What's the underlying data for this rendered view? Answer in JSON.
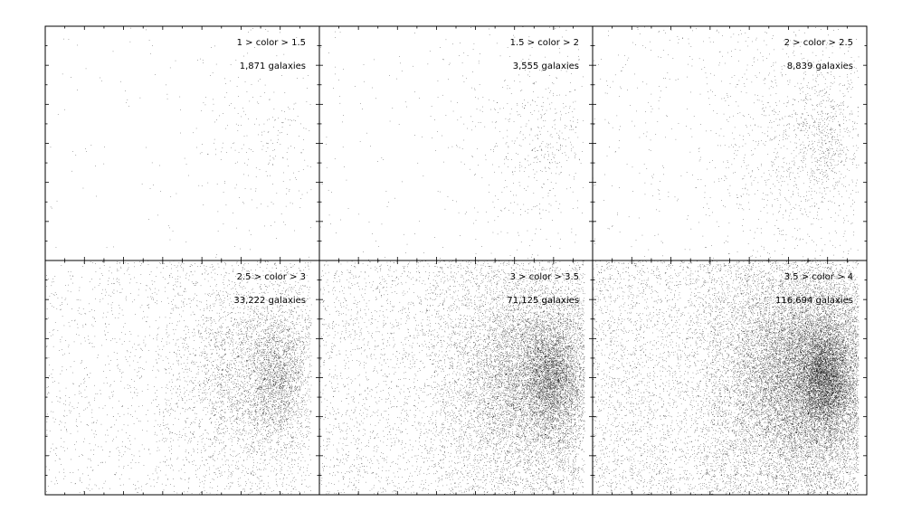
{
  "chart_data": [
    {
      "type": "scatter",
      "label": "1 > color > 1.5",
      "count_label": "1,871 galaxies",
      "n_points": 1871
    },
    {
      "type": "scatter",
      "label": "1.5 > color > 2",
      "count_label": "3,555 galaxies",
      "n_points": 3555
    },
    {
      "type": "scatter",
      "label": "2 > color > 2.5",
      "count_label": "8,839 galaxies",
      "n_points": 8839
    },
    {
      "type": "scatter",
      "label": "2.5 > color > 3",
      "count_label": "33,222 galaxies",
      "n_points": 33222
    },
    {
      "type": "scatter",
      "label": "3 > color > 3.5",
      "count_label": "71,125 galaxies",
      "n_points": 71125
    },
    {
      "type": "scatter",
      "label": "3.5 > color > 4",
      "count_label": "116,694 galaxies",
      "n_points": 116694
    }
  ],
  "colors": {
    "points": "#000000",
    "background": "#ffffff",
    "frame": "#000000"
  }
}
